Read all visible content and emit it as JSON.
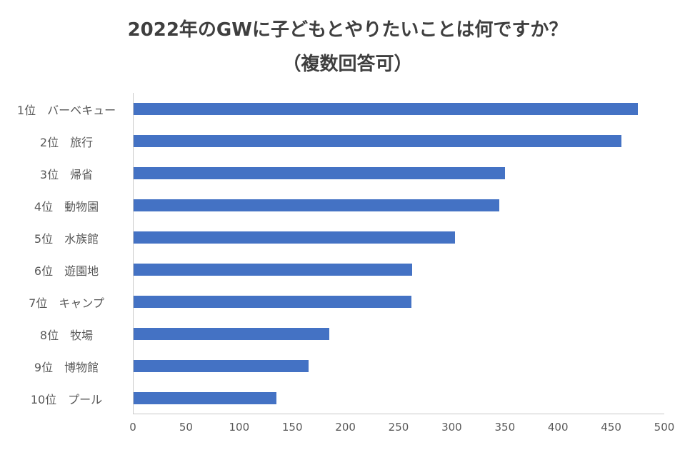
{
  "title": {
    "line1": "2022年のGWに子どもとやりたいことは何ですか？",
    "line2": "（複数回答可）"
  },
  "chart_data": {
    "type": "bar",
    "orientation": "horizontal",
    "title": "2022年のGWに子どもとやりたいことは何ですか？（複数回答可）",
    "categories": [
      "1位　バーベキュー",
      "2位　旅行",
      "3位　帰省",
      "4位　動物園",
      "5位　水族館",
      "6位　遊園地",
      "7位　キャンプ",
      "8位　牧場",
      "9位　博物館",
      "10位　プール"
    ],
    "values": [
      475,
      460,
      350,
      345,
      303,
      263,
      262,
      185,
      165,
      135
    ],
    "xlabel": "",
    "ylabel": "",
    "xlim": [
      0,
      500
    ],
    "x_ticks": [
      0,
      50,
      100,
      150,
      200,
      250,
      300,
      350,
      400,
      450,
      500
    ],
    "bar_color": "#4472C4",
    "grid": false,
    "legend": false
  }
}
